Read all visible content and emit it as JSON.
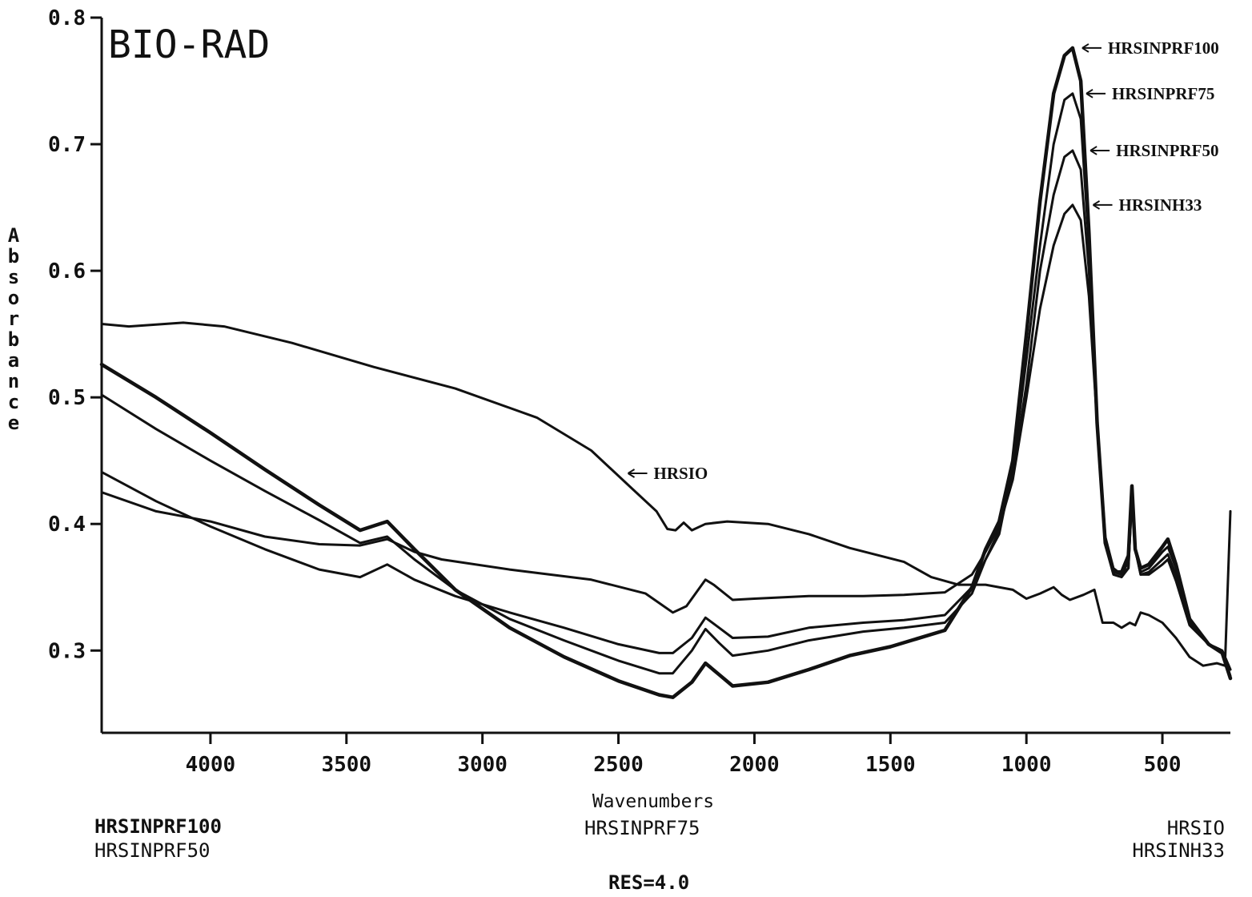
{
  "chart_data": {
    "type": "line",
    "brand": "BIO-RAD",
    "xlabel": "Wavenumbers",
    "ylabel": "Absorbance",
    "xlim": [
      4400,
      250
    ],
    "ylim": [
      0.235,
      0.8
    ],
    "x_ticks": [
      4000,
      3500,
      3000,
      2500,
      2000,
      1500,
      1000,
      500
    ],
    "y_ticks": [
      0.3,
      0.4,
      0.5,
      0.6,
      0.7,
      0.8
    ],
    "y_tick_labels": [
      "0.3",
      "0.4",
      "0.5",
      "0.6",
      "0.7",
      "0.8"
    ],
    "grid": false,
    "line_color": "#111111",
    "series": [
      {
        "name": "HRSIO",
        "stroke": 3,
        "points": [
          [
            4400,
            0.558
          ],
          [
            4300,
            0.556
          ],
          [
            4100,
            0.559
          ],
          [
            3950,
            0.556
          ],
          [
            3700,
            0.543
          ],
          [
            3400,
            0.524
          ],
          [
            3100,
            0.507
          ],
          [
            2800,
            0.484
          ],
          [
            2600,
            0.458
          ],
          [
            2450,
            0.428
          ],
          [
            2360,
            0.41
          ],
          [
            2320,
            0.396
          ],
          [
            2290,
            0.395
          ],
          [
            2260,
            0.401
          ],
          [
            2230,
            0.395
          ],
          [
            2180,
            0.4
          ],
          [
            2100,
            0.402
          ],
          [
            1950,
            0.4
          ],
          [
            1800,
            0.392
          ],
          [
            1650,
            0.381
          ],
          [
            1450,
            0.37
          ],
          [
            1350,
            0.358
          ],
          [
            1250,
            0.352
          ],
          [
            1150,
            0.352
          ],
          [
            1050,
            0.348
          ],
          [
            1000,
            0.341
          ],
          [
            950,
            0.345
          ],
          [
            900,
            0.35
          ],
          [
            870,
            0.344
          ],
          [
            840,
            0.34
          ],
          [
            790,
            0.344
          ],
          [
            750,
            0.348
          ],
          [
            720,
            0.322
          ],
          [
            680,
            0.322
          ],
          [
            650,
            0.318
          ],
          [
            620,
            0.322
          ],
          [
            600,
            0.32
          ],
          [
            580,
            0.33
          ],
          [
            550,
            0.328
          ],
          [
            500,
            0.322
          ],
          [
            450,
            0.31
          ],
          [
            400,
            0.295
          ],
          [
            350,
            0.288
          ],
          [
            300,
            0.29
          ],
          [
            270,
            0.288
          ],
          [
            250,
            0.41
          ]
        ]
      },
      {
        "name": "HRSINH33",
        "stroke": 3,
        "points": [
          [
            4400,
            0.425
          ],
          [
            4200,
            0.41
          ],
          [
            4000,
            0.402
          ],
          [
            3800,
            0.39
          ],
          [
            3600,
            0.384
          ],
          [
            3450,
            0.383
          ],
          [
            3350,
            0.388
          ],
          [
            3250,
            0.378
          ],
          [
            3150,
            0.372
          ],
          [
            2900,
            0.364
          ],
          [
            2600,
            0.356
          ],
          [
            2400,
            0.345
          ],
          [
            2300,
            0.33
          ],
          [
            2250,
            0.335
          ],
          [
            2180,
            0.356
          ],
          [
            2150,
            0.352
          ],
          [
            2080,
            0.34
          ],
          [
            2000,
            0.341
          ],
          [
            1800,
            0.343
          ],
          [
            1600,
            0.343
          ],
          [
            1450,
            0.344
          ],
          [
            1300,
            0.346
          ],
          [
            1200,
            0.36
          ],
          [
            1150,
            0.378
          ],
          [
            1100,
            0.398
          ],
          [
            1050,
            0.435
          ],
          [
            1000,
            0.5
          ],
          [
            950,
            0.57
          ],
          [
            900,
            0.62
          ],
          [
            860,
            0.645
          ],
          [
            830,
            0.652
          ],
          [
            800,
            0.64
          ],
          [
            770,
            0.58
          ],
          [
            740,
            0.48
          ],
          [
            710,
            0.39
          ],
          [
            680,
            0.365
          ],
          [
            650,
            0.36
          ],
          [
            625,
            0.365
          ],
          [
            612,
            0.42
          ],
          [
            600,
            0.38
          ],
          [
            580,
            0.36
          ],
          [
            550,
            0.36
          ],
          [
            500,
            0.368
          ],
          [
            480,
            0.372
          ],
          [
            450,
            0.355
          ],
          [
            400,
            0.32
          ],
          [
            330,
            0.305
          ],
          [
            280,
            0.3
          ],
          [
            250,
            0.285
          ]
        ]
      },
      {
        "name": "HRSINPRF50",
        "stroke": 3,
        "points": [
          [
            4400,
            0.441
          ],
          [
            4200,
            0.418
          ],
          [
            4000,
            0.398
          ],
          [
            3800,
            0.38
          ],
          [
            3600,
            0.364
          ],
          [
            3450,
            0.358
          ],
          [
            3350,
            0.368
          ],
          [
            3250,
            0.356
          ],
          [
            3100,
            0.343
          ],
          [
            2900,
            0.33
          ],
          [
            2700,
            0.318
          ],
          [
            2500,
            0.305
          ],
          [
            2350,
            0.298
          ],
          [
            2300,
            0.298
          ],
          [
            2230,
            0.31
          ],
          [
            2180,
            0.326
          ],
          [
            2130,
            0.318
          ],
          [
            2080,
            0.31
          ],
          [
            1950,
            0.311
          ],
          [
            1800,
            0.318
          ],
          [
            1600,
            0.322
          ],
          [
            1450,
            0.324
          ],
          [
            1300,
            0.328
          ],
          [
            1200,
            0.35
          ],
          [
            1150,
            0.372
          ],
          [
            1100,
            0.395
          ],
          [
            1050,
            0.44
          ],
          [
            1000,
            0.51
          ],
          [
            950,
            0.6
          ],
          [
            900,
            0.66
          ],
          [
            860,
            0.69
          ],
          [
            830,
            0.695
          ],
          [
            800,
            0.68
          ],
          [
            770,
            0.6
          ],
          [
            740,
            0.48
          ],
          [
            710,
            0.385
          ],
          [
            680,
            0.36
          ],
          [
            650,
            0.358
          ],
          [
            625,
            0.365
          ],
          [
            612,
            0.425
          ],
          [
            600,
            0.38
          ],
          [
            580,
            0.36
          ],
          [
            550,
            0.362
          ],
          [
            500,
            0.372
          ],
          [
            480,
            0.376
          ],
          [
            450,
            0.36
          ],
          [
            400,
            0.322
          ],
          [
            330,
            0.305
          ],
          [
            280,
            0.3
          ],
          [
            250,
            0.285
          ]
        ]
      },
      {
        "name": "HRSINPRF75",
        "stroke": 3,
        "points": [
          [
            4400,
            0.502
          ],
          [
            4200,
            0.475
          ],
          [
            4000,
            0.45
          ],
          [
            3800,
            0.426
          ],
          [
            3600,
            0.403
          ],
          [
            3450,
            0.385
          ],
          [
            3350,
            0.39
          ],
          [
            3250,
            0.372
          ],
          [
            3100,
            0.348
          ],
          [
            2900,
            0.325
          ],
          [
            2700,
            0.308
          ],
          [
            2500,
            0.292
          ],
          [
            2350,
            0.282
          ],
          [
            2300,
            0.282
          ],
          [
            2230,
            0.3
          ],
          [
            2180,
            0.317
          ],
          [
            2130,
            0.306
          ],
          [
            2080,
            0.296
          ],
          [
            1950,
            0.3
          ],
          [
            1800,
            0.308
          ],
          [
            1600,
            0.315
          ],
          [
            1450,
            0.318
          ],
          [
            1300,
            0.322
          ],
          [
            1200,
            0.345
          ],
          [
            1150,
            0.372
          ],
          [
            1100,
            0.392
          ],
          [
            1050,
            0.445
          ],
          [
            1000,
            0.53
          ],
          [
            950,
            0.62
          ],
          [
            900,
            0.7
          ],
          [
            860,
            0.735
          ],
          [
            830,
            0.74
          ],
          [
            800,
            0.72
          ],
          [
            770,
            0.62
          ],
          [
            740,
            0.48
          ],
          [
            710,
            0.385
          ],
          [
            680,
            0.362
          ],
          [
            650,
            0.36
          ],
          [
            625,
            0.37
          ],
          [
            612,
            0.425
          ],
          [
            600,
            0.38
          ],
          [
            580,
            0.362
          ],
          [
            550,
            0.365
          ],
          [
            500,
            0.378
          ],
          [
            480,
            0.382
          ],
          [
            450,
            0.365
          ],
          [
            400,
            0.325
          ],
          [
            330,
            0.305
          ],
          [
            280,
            0.3
          ],
          [
            250,
            0.28
          ]
        ]
      },
      {
        "name": "HRSINPRF100",
        "stroke": 4.5,
        "points": [
          [
            4400,
            0.526
          ],
          [
            4200,
            0.5
          ],
          [
            4000,
            0.472
          ],
          [
            3800,
            0.443
          ],
          [
            3600,
            0.415
          ],
          [
            3450,
            0.395
          ],
          [
            3350,
            0.402
          ],
          [
            3250,
            0.38
          ],
          [
            3100,
            0.348
          ],
          [
            2900,
            0.318
          ],
          [
            2700,
            0.295
          ],
          [
            2500,
            0.276
          ],
          [
            2350,
            0.265
          ],
          [
            2300,
            0.263
          ],
          [
            2230,
            0.275
          ],
          [
            2180,
            0.29
          ],
          [
            2130,
            0.281
          ],
          [
            2080,
            0.272
          ],
          [
            1950,
            0.275
          ],
          [
            1800,
            0.285
          ],
          [
            1650,
            0.296
          ],
          [
            1500,
            0.303
          ],
          [
            1300,
            0.316
          ],
          [
            1200,
            0.35
          ],
          [
            1150,
            0.38
          ],
          [
            1100,
            0.402
          ],
          [
            1050,
            0.45
          ],
          [
            1000,
            0.55
          ],
          [
            950,
            0.655
          ],
          [
            900,
            0.74
          ],
          [
            860,
            0.77
          ],
          [
            830,
            0.776
          ],
          [
            800,
            0.75
          ],
          [
            770,
            0.63
          ],
          [
            740,
            0.48
          ],
          [
            710,
            0.385
          ],
          [
            680,
            0.362
          ],
          [
            650,
            0.362
          ],
          [
            625,
            0.375
          ],
          [
            612,
            0.43
          ],
          [
            600,
            0.38
          ],
          [
            580,
            0.365
          ],
          [
            550,
            0.368
          ],
          [
            500,
            0.382
          ],
          [
            480,
            0.388
          ],
          [
            450,
            0.368
          ],
          [
            400,
            0.325
          ],
          [
            330,
            0.305
          ],
          [
            280,
            0.298
          ],
          [
            250,
            0.278
          ]
        ]
      }
    ],
    "annotations": [
      {
        "text": "HRSINPRF100",
        "at": [
          830,
          0.776
        ]
      },
      {
        "text": "HRSINPRF75",
        "at": [
          815,
          0.74
        ]
      },
      {
        "text": "HRSINPRF50",
        "at": [
          800,
          0.695
        ]
      },
      {
        "text": "HRSINH33",
        "at": [
          790,
          0.652
        ]
      },
      {
        "text": "HRSIO",
        "at": [
          2500,
          0.44
        ]
      }
    ]
  },
  "footer": {
    "left_line1": "HRSINPRF100",
    "left_line2": "HRSINPRF50",
    "center_line1": "HRSINPRF75",
    "center_line2": "RES=4.0",
    "right_line1": "HRSIO",
    "right_line2": "HRSINH33"
  }
}
